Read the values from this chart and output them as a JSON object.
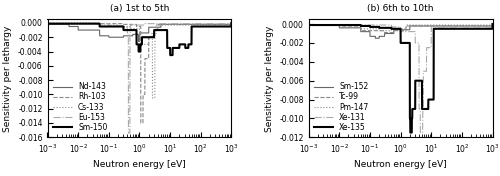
{
  "title_a": "(a) 1st to 5th",
  "title_b": "(b) 6th to 10th",
  "xlabel": "Neutron energy [eV]",
  "ylabel": "Sensitivity per lethargy",
  "xlim": [
    0.001,
    1000.0
  ],
  "ylim_a": [
    -0.016,
    0.0005
  ],
  "ylim_b": [
    -0.012,
    0.0005
  ],
  "yticks_a": [
    0.0,
    -0.002,
    -0.004,
    -0.006,
    -0.008,
    -0.01,
    -0.012,
    -0.014,
    -0.016
  ],
  "yticks_b": [
    0.0,
    -0.002,
    -0.004,
    -0.006,
    -0.008,
    -0.01,
    -0.012
  ],
  "panel_a": {
    "nuclides": [
      "Nd-143",
      "Rh-103",
      "Cs-133",
      "Eu-153",
      "Sm-150"
    ],
    "linestyles": [
      "solid",
      "dashed",
      "dotted",
      "dashdot",
      "solid"
    ],
    "linewidths": [
      0.8,
      0.8,
      0.8,
      0.8,
      1.5
    ],
    "colors": [
      "#666666",
      "#888888",
      "#888888",
      "#aaaaaa",
      "#000000"
    ]
  },
  "panel_b": {
    "nuclides": [
      "Sm-152",
      "Tc-99",
      "Pm-147",
      "Xe-131",
      "Xe-135"
    ],
    "linestyles": [
      "solid",
      "dashed",
      "dotted",
      "dashdot",
      "solid"
    ],
    "linewidths": [
      0.8,
      0.8,
      0.8,
      0.8,
      1.5
    ],
    "colors": [
      "#666666",
      "#888888",
      "#888888",
      "#aaaaaa",
      "#000000"
    ]
  },
  "legend_fontsize": 5.5,
  "tick_labelsize": 5.5,
  "axis_labelsize": 6.5,
  "title_fontsize": 6.5
}
